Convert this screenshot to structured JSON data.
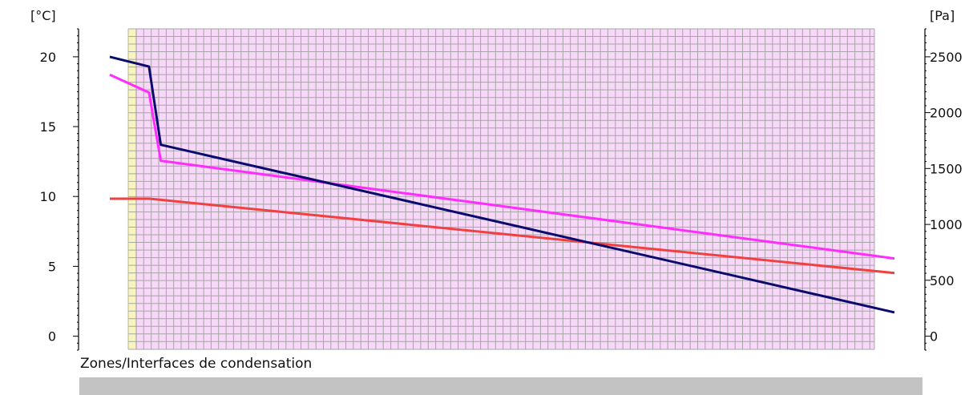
{
  "chart_data": {
    "type": "line",
    "left_axis_unit": "[°C]",
    "right_axis_unit": "[Pa]",
    "left_ticks": [
      "0",
      "5",
      "10",
      "15",
      "20"
    ],
    "right_ticks": [
      "0",
      "500",
      "1000",
      "1500",
      "2000",
      "2500"
    ],
    "ylim_left": [
      -1,
      22
    ],
    "ylim_right": [
      -125,
      2750
    ],
    "grid": true,
    "x": [
      0,
      5,
      6.5,
      100
    ],
    "series": [
      {
        "axis": "left",
        "color": "#0a0a6e",
        "values": [
          20.0,
          19.3,
          13.7,
          1.7
        ]
      },
      {
        "axis": "right",
        "color": "#ff2bff",
        "values": [
          2340,
          2180,
          1570,
          695
        ]
      },
      {
        "axis": "right",
        "color": "#f04040",
        "values": [
          1230,
          1230,
          1220,
          565
        ]
      }
    ]
  },
  "condensation": {
    "label": "Zones/Interfaces de condensation"
  },
  "colors": {
    "plot_bg": "#f8d8f8",
    "grid": "#a6a6a6",
    "yellow_layer": "#f8f4c0"
  }
}
